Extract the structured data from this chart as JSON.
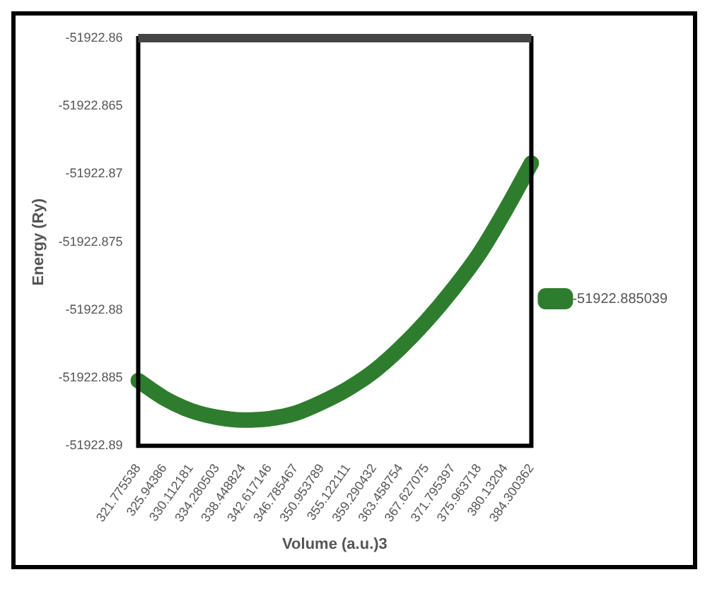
{
  "chart_data": {
    "type": "line",
    "xlabel": "Volume (a.u.)3",
    "ylabel": "Energy (Ry)",
    "categories": [
      "321.775538",
      "325.94386",
      "330.112181",
      "334.280503",
      "338.448824",
      "342.617146",
      "346.785467",
      "350.953789",
      "355.122111",
      "359.290432",
      "363.458754",
      "367.627075",
      "371.795397",
      "375.963718",
      "380.13204",
      "384.300362"
    ],
    "series": [
      {
        "name": "-51922.885039",
        "color": "#2e7d2e",
        "values": [
          -51922.8852,
          -51922.8865,
          -51922.8874,
          -51922.8879,
          -51922.8881,
          -51922.888,
          -51922.8876,
          -51922.8868,
          -51922.8858,
          -51922.8845,
          -51922.8828,
          -51922.8808,
          -51922.8785,
          -51922.8759,
          -51922.8727,
          -51922.8692
        ]
      }
    ],
    "ylim": [
      -51922.89,
      -51922.86
    ],
    "yticks": [
      -51922.89,
      -51922.885,
      -51922.88,
      -51922.875,
      -51922.87,
      -51922.865,
      -51922.86
    ],
    "grid": false,
    "legend": "right",
    "marker": "none",
    "line_style": "solid"
  }
}
